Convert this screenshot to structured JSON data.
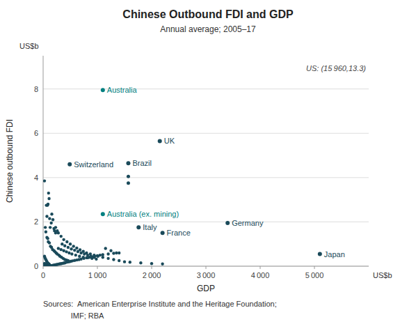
{
  "chart_data": {
    "type": "scatter",
    "title": "Chinese Outbound FDI and GDP",
    "subtitle": "Annual average; 2005–17",
    "xlabel": "GDP",
    "ylabel": "Chinese outbound FDI",
    "x_unit": "US$b",
    "y_unit": "US$b",
    "annotations": [
      "US: (15 960,13.3)"
    ],
    "source": [
      "Sources:  American Enterprise Institute and the Heritage Foundation;",
      "             IMF; RBA"
    ],
    "xlim": [
      0,
      6000
    ],
    "ylim": [
      0,
      9.5
    ],
    "xticks": [
      0,
      {
        "value": 1000,
        "label": "1 000"
      },
      {
        "value": 2000,
        "label": "2 000"
      },
      {
        "value": 3000,
        "label": "3 000"
      },
      {
        "value": 4000,
        "label": "4 000"
      },
      {
        "value": 5000,
        "label": "5 000"
      }
    ],
    "yticks": [
      0,
      2,
      4,
      6,
      8
    ],
    "grid": "y",
    "series": [
      {
        "color": "#1a4a5a",
        "x": [
          25,
          60,
          70,
          80,
          90,
          100,
          110,
          120,
          130,
          150,
          160,
          180,
          200,
          210,
          230,
          40,
          50,
          70,
          85,
          95,
          115,
          135,
          155,
          175,
          200,
          220,
          240,
          260,
          290,
          310,
          340,
          370,
          400,
          430,
          460,
          25,
          35,
          45,
          55,
          65,
          75,
          85,
          95,
          105,
          115,
          25,
          30,
          40,
          50,
          60,
          70,
          80,
          90,
          25,
          30,
          35,
          40,
          45,
          50,
          55,
          60,
          65,
          70,
          75,
          80,
          85,
          90,
          95,
          100,
          105,
          110,
          115,
          120,
          125,
          130,
          135,
          140,
          145,
          150,
          160,
          170,
          180,
          190,
          200,
          210,
          220,
          240,
          260,
          280,
          300,
          320,
          340,
          360,
          380,
          400,
          420,
          450,
          480,
          510,
          540,
          580,
          620,
          660,
          700,
          750,
          800,
          850,
          900,
          950,
          1000,
          1050,
          1100,
          1200,
          1300,
          1400,
          280,
          330,
          380,
          430,
          480,
          530,
          600,
          670,
          740,
          820,
          900,
          980,
          350,
          400,
          460,
          520,
          580,
          640,
          700,
          760,
          820,
          880,
          940,
          280,
          330,
          380,
          440,
          500,
          560,
          620,
          680,
          740,
          800,
          870,
          940,
          1010,
          1100,
          1200,
          1300,
          1400,
          1500,
          1600,
          1800,
          2000,
          2200,
          230,
          260,
          1150,
          1250,
          1350
        ],
        "values": [
          3.85,
          2.75,
          2.25,
          2.75,
          2.8,
          3.3,
          3.05,
          2.15,
          1.75,
          1.95,
          2.35,
          2.1,
          1.7,
          1.6,
          1.5,
          1.75,
          1.55,
          1.3,
          1.25,
          1.1,
          1.05,
          0.9,
          0.85,
          0.75,
          0.7,
          0.65,
          0.6,
          0.55,
          0.5,
          0.45,
          0.4,
          0.35,
          0.3,
          0.28,
          0.25,
          0.45,
          0.38,
          0.32,
          0.28,
          0.22,
          0.18,
          0.14,
          0.12,
          0.1,
          0.08,
          0.12,
          0.1,
          0.08,
          0.06,
          0.04,
          0.03,
          0.02,
          0.01,
          0.0,
          0.0,
          0.0,
          0.0,
          0.0,
          0.0,
          0.0,
          0.0,
          0.0,
          0.0,
          0.0,
          0.0,
          0.0,
          0.0,
          0.0,
          0.0,
          0.0,
          0.0,
          0.0,
          0.0,
          0.01,
          0.01,
          0.01,
          0.01,
          0.01,
          0.02,
          0.02,
          0.03,
          0.03,
          0.04,
          0.04,
          0.05,
          0.06,
          0.07,
          0.08,
          0.09,
          0.1,
          0.11,
          0.12,
          0.13,
          0.14,
          0.15,
          0.17,
          0.19,
          0.2,
          0.22,
          0.24,
          0.26,
          0.28,
          0.3,
          0.32,
          0.35,
          0.38,
          0.4,
          0.42,
          0.45,
          0.47,
          0.5,
          0.52,
          0.55,
          0.58,
          0.6,
          0.8,
          0.75,
          0.7,
          0.65,
          0.6,
          0.55,
          0.5,
          0.45,
          0.4,
          0.38,
          0.35,
          0.32,
          1.0,
          0.92,
          0.85,
          0.78,
          0.72,
          0.66,
          0.6,
          0.55,
          0.5,
          0.45,
          0.4,
          1.5,
          1.35,
          1.2,
          1.1,
          1.0,
          0.9,
          0.82,
          0.74,
          0.67,
          0.6,
          0.55,
          0.5,
          0.45,
          0.4,
          0.35,
          0.3,
          0.25,
          0.2,
          0.18,
          0.15,
          0.12,
          0.1,
          1.75,
          1.6,
          0.8,
          0.7,
          0.6
        ]
      },
      {
        "color": "#1a4a5a",
        "x": [
          1570,
          1570
        ],
        "values": [
          4.05,
          3.75
        ]
      },
      {
        "labels": [
          "Australia",
          "Australia (ex. mining)",
          "Switzerland",
          "Brazil",
          "UK",
          "Germany",
          "Italy",
          "France",
          "Japan"
        ],
        "x": [
          1100,
          1100,
          490,
          1570,
          2150,
          3400,
          1760,
          2200,
          5100
        ],
        "values": [
          7.95,
          2.35,
          4.6,
          4.65,
          5.65,
          1.95,
          1.75,
          1.5,
          0.55
        ],
        "colors": [
          "#008080",
          "#008080",
          "#1a4a5a",
          "#1a4a5a",
          "#1a4a5a",
          "#1a4a5a",
          "#1a4a5a",
          "#1a4a5a",
          "#1a4a5a"
        ]
      }
    ]
  }
}
